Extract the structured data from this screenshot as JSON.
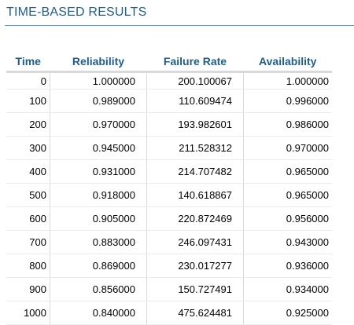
{
  "section": {
    "title": "TIME-BASED RESULTS"
  },
  "table": {
    "headers": [
      "Time",
      "Reliability",
      "Failure Rate",
      "Availability"
    ],
    "rows": [
      [
        "0",
        "1.000000",
        "200.100067",
        "1.000000"
      ],
      [
        "100",
        "0.989000",
        "110.609474",
        "0.996000"
      ],
      [
        "200",
        "0.970000",
        "193.982601",
        "0.986000"
      ],
      [
        "300",
        "0.945000",
        "211.528312",
        "0.970000"
      ],
      [
        "400",
        "0.931000",
        "214.707482",
        "0.965000"
      ],
      [
        "500",
        "0.918000",
        "140.618867",
        "0.965000"
      ],
      [
        "600",
        "0.905000",
        "220.872469",
        "0.956000"
      ],
      [
        "700",
        "0.883000",
        "246.097431",
        "0.943000"
      ],
      [
        "800",
        "0.869000",
        "230.017277",
        "0.936000"
      ],
      [
        "900",
        "0.856000",
        "150.727491",
        "0.934000"
      ],
      [
        "1000",
        "0.840000",
        "475.624481",
        "0.925000"
      ]
    ]
  },
  "colors": {
    "heading": "#1f5e8c",
    "rule": "#5b9bd5",
    "grid": "#d9d9d9"
  }
}
